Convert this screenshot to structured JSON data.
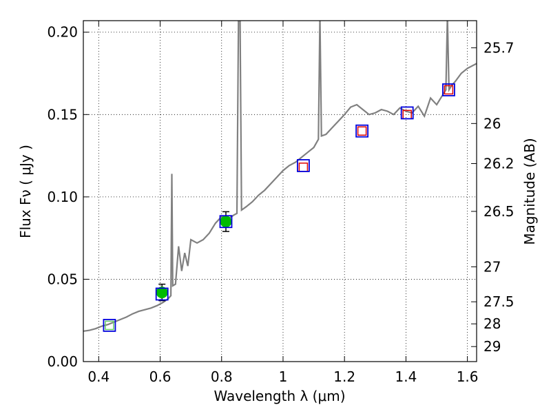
{
  "chart_data": {
    "type": "scatter",
    "xlabel": "Wavelength  λ (μm)",
    "ylabel": "Flux  Fν  ( μJy )",
    "ylabel_right": "Magnitude (AB)",
    "xlim": [
      0.35,
      1.63
    ],
    "ylim": [
      0.0,
      0.207
    ],
    "grid": true,
    "x_ticks": [
      {
        "value": 0.4,
        "label": "0.4"
      },
      {
        "value": 0.6,
        "label": "0.6"
      },
      {
        "value": 0.8,
        "label": "0.8"
      },
      {
        "value": 1.0,
        "label": "1"
      },
      {
        "value": 1.2,
        "label": "1.2"
      },
      {
        "value": 1.4,
        "label": "1.4"
      },
      {
        "value": 1.6,
        "label": "1.6"
      }
    ],
    "y_ticks": [
      {
        "value": 0.0,
        "label": "0.00"
      },
      {
        "value": 0.05,
        "label": "0.05"
      },
      {
        "value": 0.1,
        "label": "0.10"
      },
      {
        "value": 0.15,
        "label": "0.15"
      },
      {
        "value": 0.2,
        "label": "0.20"
      }
    ],
    "right_ticks": [
      {
        "mag": 25.7,
        "label": "25.7"
      },
      {
        "mag": 26.0,
        "label": "26"
      },
      {
        "mag": 26.2,
        "label": "26.2"
      },
      {
        "mag": 26.5,
        "label": "26.5"
      },
      {
        "mag": 27.0,
        "label": "27"
      },
      {
        "mag": 27.5,
        "label": "27.5"
      },
      {
        "mag": 28.0,
        "label": "28"
      },
      {
        "mag": 29.0,
        "label": "29"
      }
    ],
    "colors": {
      "spectrum": "#808080",
      "observed": "#00bb00",
      "model_box": "#0000dd",
      "nir_box": "#dd0000",
      "optical_box": "#66cc66",
      "errorbar": "#000000"
    },
    "spectrum": [
      [
        0.35,
        0.0185
      ],
      [
        0.37,
        0.019
      ],
      [
        0.39,
        0.02
      ],
      [
        0.41,
        0.0215
      ],
      [
        0.43,
        0.0225
      ],
      [
        0.45,
        0.024
      ],
      [
        0.47,
        0.0255
      ],
      [
        0.49,
        0.027
      ],
      [
        0.51,
        0.029
      ],
      [
        0.53,
        0.0305
      ],
      [
        0.55,
        0.0315
      ],
      [
        0.57,
        0.0325
      ],
      [
        0.59,
        0.034
      ],
      [
        0.61,
        0.036
      ],
      [
        0.625,
        0.038
      ],
      [
        0.635,
        0.04
      ],
      [
        0.638,
        0.114
      ],
      [
        0.641,
        0.046
      ],
      [
        0.65,
        0.047
      ],
      [
        0.66,
        0.07
      ],
      [
        0.67,
        0.055
      ],
      [
        0.68,
        0.066
      ],
      [
        0.69,
        0.058
      ],
      [
        0.7,
        0.074
      ],
      [
        0.72,
        0.072
      ],
      [
        0.74,
        0.074
      ],
      [
        0.76,
        0.078
      ],
      [
        0.78,
        0.084
      ],
      [
        0.8,
        0.088
      ],
      [
        0.82,
        0.0865
      ],
      [
        0.84,
        0.089
      ],
      [
        0.85,
        0.09
      ],
      [
        0.855,
        0.21
      ],
      [
        0.86,
        0.21
      ],
      [
        0.865,
        0.092
      ],
      [
        0.88,
        0.094
      ],
      [
        0.9,
        0.097
      ],
      [
        0.92,
        0.101
      ],
      [
        0.94,
        0.104
      ],
      [
        0.96,
        0.108
      ],
      [
        0.98,
        0.112
      ],
      [
        1.0,
        0.116
      ],
      [
        1.02,
        0.119
      ],
      [
        1.04,
        0.121
      ],
      [
        1.06,
        0.124
      ],
      [
        1.08,
        0.127
      ],
      [
        1.1,
        0.13
      ],
      [
        1.115,
        0.135
      ],
      [
        1.12,
        0.21
      ],
      [
        1.125,
        0.137
      ],
      [
        1.14,
        0.138
      ],
      [
        1.16,
        0.142
      ],
      [
        1.18,
        0.146
      ],
      [
        1.2,
        0.15
      ],
      [
        1.22,
        0.1545
      ],
      [
        1.24,
        0.156
      ],
      [
        1.26,
        0.153
      ],
      [
        1.28,
        0.15
      ],
      [
        1.3,
        0.151
      ],
      [
        1.32,
        0.153
      ],
      [
        1.34,
        0.152
      ],
      [
        1.36,
        0.15
      ],
      [
        1.38,
        0.154
      ],
      [
        1.4,
        0.152
      ],
      [
        1.42,
        0.151
      ],
      [
        1.44,
        0.155
      ],
      [
        1.46,
        0.149
      ],
      [
        1.48,
        0.16
      ],
      [
        1.5,
        0.156
      ],
      [
        1.52,
        0.162
      ],
      [
        1.53,
        0.165
      ],
      [
        1.535,
        0.21
      ],
      [
        1.54,
        0.165
      ],
      [
        1.55,
        0.168
      ],
      [
        1.56,
        0.17
      ],
      [
        1.58,
        0.175
      ],
      [
        1.6,
        0.178
      ],
      [
        1.63,
        0.181
      ]
    ],
    "observed": [
      {
        "x": 0.606,
        "y": 0.042,
        "yerr": 0.005
      },
      {
        "x": 0.814,
        "y": 0.085,
        "yerr": 0.006
      }
    ],
    "model_points": [
      {
        "x": 0.435,
        "y": 0.022
      },
      {
        "x": 0.606,
        "y": 0.041
      },
      {
        "x": 0.814,
        "y": 0.085
      },
      {
        "x": 1.066,
        "y": 0.119
      },
      {
        "x": 1.257,
        "y": 0.14
      },
      {
        "x": 1.404,
        "y": 0.151
      },
      {
        "x": 1.539,
        "y": 0.165
      }
    ],
    "nir_points": [
      {
        "x": 1.066,
        "y": 0.118
      },
      {
        "x": 1.257,
        "y": 0.14
      },
      {
        "x": 1.404,
        "y": 0.15
      },
      {
        "x": 1.539,
        "y": 0.165
      }
    ],
    "optical_points": [
      {
        "x": 0.435,
        "y": 0.022
      }
    ]
  }
}
